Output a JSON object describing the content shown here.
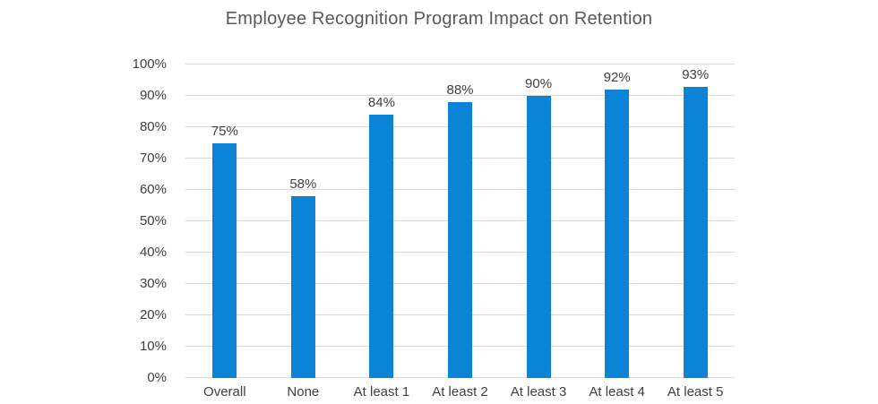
{
  "title": "Employee Recognition Program Impact on Retention",
  "colors": {
    "bar": "#0b84d6",
    "gridline": "#d9d9d9",
    "title_text": "#595959",
    "axis_text": "#404040",
    "label_text": "#404040",
    "background": "#ffffff"
  },
  "chart_data": {
    "type": "bar",
    "title": "Employee Recognition Program Impact on Retention",
    "categories": [
      "Overall",
      "None",
      "At least 1",
      "At least 2",
      "At least 3",
      "At least 4",
      "At least 5"
    ],
    "values": [
      75,
      58,
      84,
      88,
      90,
      92,
      93
    ],
    "data_labels": [
      "75%",
      "58%",
      "84%",
      "88%",
      "90%",
      "92%",
      "93%"
    ],
    "xlabel": "",
    "ylabel": "",
    "ylim": [
      0,
      100
    ],
    "ytick_interval": 10,
    "ytick_labels": [
      "0%",
      "10%",
      "20%",
      "30%",
      "40%",
      "50%",
      "60%",
      "70%",
      "80%",
      "90%",
      "100%"
    ],
    "grid": "horizontal",
    "legend_position": "none",
    "bar_color": "#0b84d6"
  }
}
